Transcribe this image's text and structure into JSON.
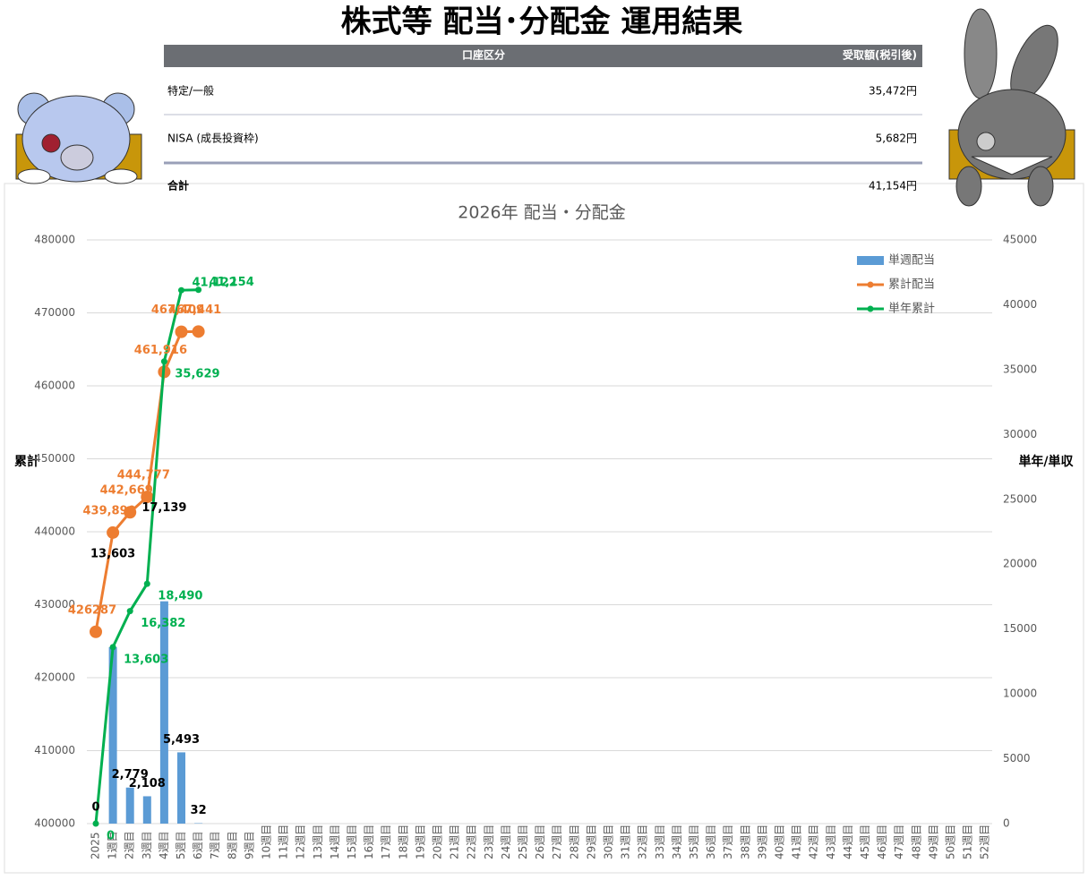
{
  "title": "株式等 配当･分配金 運用結果",
  "table": {
    "header": [
      "口座区分",
      "受取額(税引後)"
    ],
    "rows": [
      [
        "特定/一般",
        "35,472円"
      ],
      [
        "NISA (成長投資枠)",
        "5,682円"
      ],
      [
        "合計",
        "41,154円"
      ]
    ]
  },
  "chart_data": {
    "type": "combo",
    "title": "2026年 配当・分配金",
    "ylabel": "累計",
    "y2label": "単年/単収",
    "categories": [
      "2025",
      "1週目",
      "2週目",
      "3週目",
      "4週目",
      "5週目",
      "6週目",
      "7週目",
      "8週目",
      "9週目",
      "10週目",
      "11週目",
      "12週目",
      "13週目",
      "14週目",
      "15週目",
      "16週目",
      "17週目",
      "18週目",
      "19週目",
      "20週目",
      "21週目",
      "22週目",
      "23週目",
      "24週目",
      "25週目",
      "26週目",
      "27週目",
      "28週目",
      "29週目",
      "30週目",
      "31週目",
      "32週目",
      "33週目",
      "34週目",
      "35週目",
      "36週目",
      "37週目",
      "38週目",
      "39週目",
      "40週目",
      "41週目",
      "42週目",
      "43週目",
      "44週目",
      "45週目",
      "46週目",
      "47週目",
      "48週目",
      "49週目",
      "50週目",
      "51週目",
      "52週目"
    ],
    "ylim": [
      400000,
      480000
    ],
    "yticks": [
      400000,
      410000,
      420000,
      430000,
      440000,
      450000,
      460000,
      470000,
      480000
    ],
    "y2lim": [
      0,
      45000
    ],
    "y2ticks": [
      0,
      5000,
      10000,
      15000,
      20000,
      25000,
      30000,
      35000,
      40000,
      45000
    ],
    "grid": true,
    "legend": "upper right",
    "series": [
      {
        "name": "単週配当",
        "type": "bar",
        "axis": "y2",
        "color": "#5b9bd5",
        "values": [
          0,
          13603,
          2779,
          2108,
          17139,
          5493,
          32,
          null,
          null,
          null,
          null,
          null,
          null,
          null,
          null,
          null,
          null,
          null,
          null,
          null,
          null,
          null,
          null,
          null,
          null,
          null,
          null,
          null,
          null,
          null,
          null,
          null,
          null,
          null,
          null,
          null,
          null,
          null,
          null,
          null,
          null,
          null,
          null,
          null,
          null,
          null,
          null,
          null,
          null,
          null,
          null,
          null,
          null
        ],
        "value_labels": [
          "0",
          "13,603",
          "2,779",
          "2,108",
          "17,139",
          "5,493",
          "32",
          null,
          null,
          null,
          null,
          null,
          null,
          null,
          null,
          null,
          null,
          null,
          null,
          null,
          null,
          null,
          null,
          null,
          null,
          null,
          null,
          null,
          null,
          null,
          null,
          null,
          null,
          null,
          null,
          null,
          null,
          null,
          null,
          null,
          null,
          null,
          null,
          null,
          null,
          null,
          null,
          null,
          null,
          null,
          null,
          null,
          null
        ]
      },
      {
        "name": "累計配当",
        "type": "line",
        "axis": "y",
        "color": "#ed7d31",
        "values": [
          426287,
          439890,
          442669,
          444777,
          461916,
          467409,
          467441,
          null,
          null,
          null,
          null,
          null,
          null,
          null,
          null,
          null,
          null,
          null,
          null,
          null,
          null,
          null,
          null,
          null,
          null,
          null,
          null,
          null,
          null,
          null,
          null,
          null,
          null,
          null,
          null,
          null,
          null,
          null,
          null,
          null,
          null,
          null,
          null,
          null,
          null,
          null,
          null,
          null,
          null,
          null,
          null,
          null,
          null
        ],
        "value_labels": [
          "426287",
          "439,890",
          "442,669",
          "444,777",
          "461,916",
          "467,409",
          "467,441",
          null,
          null,
          null,
          null,
          null,
          null,
          null,
          null,
          null,
          null,
          null,
          null,
          null,
          null,
          null,
          null,
          null,
          null,
          null,
          null,
          null,
          null,
          null,
          null,
          null,
          null,
          null,
          null,
          null,
          null,
          null,
          null,
          null,
          null,
          null,
          null,
          null,
          null,
          null,
          null,
          null,
          null,
          null,
          null,
          null,
          null
        ]
      },
      {
        "name": "単年累計",
        "type": "line",
        "axis": "y2",
        "color": "#00b050",
        "values": [
          0,
          13603,
          16382,
          18490,
          35629,
          41122,
          41154,
          null,
          null,
          null,
          null,
          null,
          null,
          null,
          null,
          null,
          null,
          null,
          null,
          null,
          null,
          null,
          null,
          null,
          null,
          null,
          null,
          null,
          null,
          null,
          null,
          null,
          null,
          null,
          null,
          null,
          null,
          null,
          null,
          null,
          null,
          null,
          null,
          null,
          null,
          null,
          null,
          null,
          null,
          null,
          null,
          null,
          null
        ],
        "value_labels": [
          "0",
          "13,603",
          "16,382",
          "18,490",
          "35,629",
          "41,122",
          "41,154",
          null,
          null,
          null,
          null,
          null,
          null,
          null,
          null,
          null,
          null,
          null,
          null,
          null,
          null,
          null,
          null,
          null,
          null,
          null,
          null,
          null,
          null,
          null,
          null,
          null,
          null,
          null,
          null,
          null,
          null,
          null,
          null,
          null,
          null,
          null,
          null,
          null,
          null,
          null,
          null,
          null,
          null,
          null,
          null,
          null,
          null
        ]
      }
    ]
  }
}
